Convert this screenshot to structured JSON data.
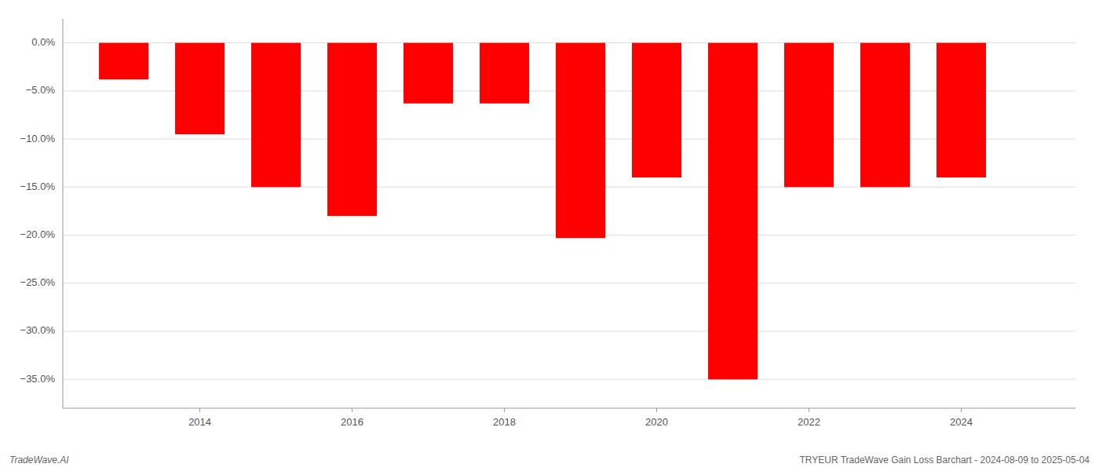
{
  "chart_data": {
    "type": "bar",
    "x": [
      2013,
      2014,
      2015,
      2016,
      2017,
      2018,
      2019,
      2020,
      2021,
      2022,
      2023,
      2024
    ],
    "values": [
      -3.8,
      -9.5,
      -15.0,
      -18.0,
      -6.3,
      -6.3,
      -20.3,
      -14.0,
      -35.0,
      -15.0,
      -15.0,
      -14.0
    ],
    "color": "#ff0000",
    "xlim": [
      2012.2,
      2025.5
    ],
    "xticks": [
      2014,
      2016,
      2018,
      2020,
      2022,
      2024
    ],
    "ylim": [
      -38,
      2.5
    ],
    "yticks": [
      {
        "value": 0.0,
        "label": "0.0%"
      },
      {
        "value": -5.0,
        "label": "−5.0%"
      },
      {
        "value": -10.0,
        "label": "−10.0%"
      },
      {
        "value": -15.0,
        "label": "−15.0%"
      },
      {
        "value": -20.0,
        "label": "−20.0%"
      },
      {
        "value": -25.0,
        "label": "−25.0%"
      },
      {
        "value": -30.0,
        "label": "−30.0%"
      },
      {
        "value": -35.0,
        "label": "−35.0%"
      }
    ],
    "grid": true,
    "annotations": [
      "TradeWave.AI",
      "TRYEUR TradeWave Gain Loss Barchart - 2024-08-09 to 2025-05-04"
    ]
  }
}
